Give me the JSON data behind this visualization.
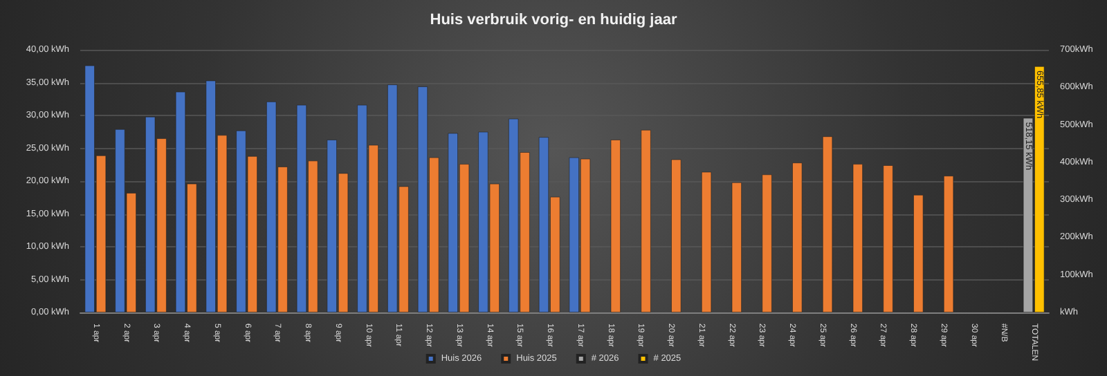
{
  "chart_data": {
    "type": "bar",
    "title": "Huis verbruik vorig- en huidig jaar",
    "categories": [
      "1 apr",
      "2 apr",
      "3 apr",
      "4 apr",
      "5 apr",
      "6 apr",
      "7 apr",
      "8 apr",
      "9 apr",
      "10 apr",
      "11 apr",
      "12 apr",
      "13 apr",
      "14 apr",
      "15 apr",
      "16 apr",
      "17 apr",
      "18 apr",
      "19 apr",
      "20 apr",
      "21 apr",
      "22 apr",
      "23 apr",
      "24 apr",
      "25 apr",
      "26 apr",
      "27 apr",
      "28 apr",
      "29 apr",
      "30 apr",
      "#N/B",
      "TOTALEN"
    ],
    "series": [
      {
        "name": "Huis 2026",
        "color": "#4472c4",
        "values": [
          37.6,
          27.9,
          29.8,
          33.6,
          35.3,
          27.7,
          32.1,
          31.6,
          26.3,
          31.6,
          34.7,
          34.4,
          27.3,
          27.5,
          29.5,
          26.7,
          23.6,
          null,
          null,
          null,
          null,
          null,
          null,
          null,
          null,
          null,
          null,
          null,
          null,
          null,
          null,
          null
        ]
      },
      {
        "name": "Huis 2025",
        "color": "#ed7d31",
        "values": [
          23.9,
          18.2,
          26.5,
          19.6,
          27.0,
          23.8,
          22.2,
          23.1,
          21.2,
          25.5,
          19.2,
          23.6,
          22.6,
          19.6,
          24.4,
          17.6,
          23.4,
          26.3,
          27.8,
          23.3,
          21.4,
          19.8,
          21.0,
          22.8,
          26.8,
          22.6,
          22.4,
          17.9,
          20.8,
          null,
          null,
          null
        ]
      },
      {
        "name": "# 2026",
        "color": "#a5a5a5",
        "axis": "y2",
        "values": [
          null,
          null,
          null,
          null,
          null,
          null,
          null,
          null,
          null,
          null,
          null,
          null,
          null,
          null,
          null,
          null,
          null,
          null,
          null,
          null,
          null,
          null,
          null,
          null,
          null,
          null,
          null,
          null,
          null,
          null,
          null,
          518.15
        ],
        "value_labels": [
          null,
          null,
          null,
          null,
          null,
          null,
          null,
          null,
          null,
          null,
          null,
          null,
          null,
          null,
          null,
          null,
          null,
          null,
          null,
          null,
          null,
          null,
          null,
          null,
          null,
          null,
          null,
          null,
          null,
          null,
          null,
          "518,15 kWh"
        ]
      },
      {
        "name": "# 2025",
        "color": "#ffc000",
        "axis": "y2",
        "values": [
          null,
          null,
          null,
          null,
          null,
          null,
          null,
          null,
          null,
          null,
          null,
          null,
          null,
          null,
          null,
          null,
          null,
          null,
          null,
          null,
          null,
          null,
          null,
          null,
          null,
          null,
          null,
          null,
          null,
          null,
          null,
          655.85
        ],
        "value_labels": [
          null,
          null,
          null,
          null,
          null,
          null,
          null,
          null,
          null,
          null,
          null,
          null,
          null,
          null,
          null,
          null,
          null,
          null,
          null,
          null,
          null,
          null,
          null,
          null,
          null,
          null,
          null,
          null,
          null,
          null,
          null,
          "655,85 kWh"
        ]
      }
    ],
    "ylim": [
      0,
      40
    ],
    "yticks": [
      {
        "value": 0,
        "label": "0,00 kWh"
      },
      {
        "value": 5,
        "label": "5,00 kWh"
      },
      {
        "value": 10,
        "label": "10,00 kWh"
      },
      {
        "value": 15,
        "label": "15,00 kWh"
      },
      {
        "value": 20,
        "label": "20,00 kWh"
      },
      {
        "value": 25,
        "label": "25,00 kWh"
      },
      {
        "value": 30,
        "label": "30,00 kWh"
      },
      {
        "value": 35,
        "label": "35,00 kWh"
      },
      {
        "value": 40,
        "label": "40,00 kWh"
      }
    ],
    "y2lim": [
      0,
      700
    ],
    "y2ticks": [
      {
        "value": 0,
        "label": "kWh"
      },
      {
        "value": 100,
        "label": "100kWh"
      },
      {
        "value": 200,
        "label": "200kWh"
      },
      {
        "value": 300,
        "label": "300kWh"
      },
      {
        "value": 400,
        "label": "400kWh"
      },
      {
        "value": 500,
        "label": "500kWh"
      },
      {
        "value": 600,
        "label": "600kWh"
      },
      {
        "value": 700,
        "label": "700kWh"
      }
    ],
    "grid": "y",
    "legend": "bottom"
  }
}
